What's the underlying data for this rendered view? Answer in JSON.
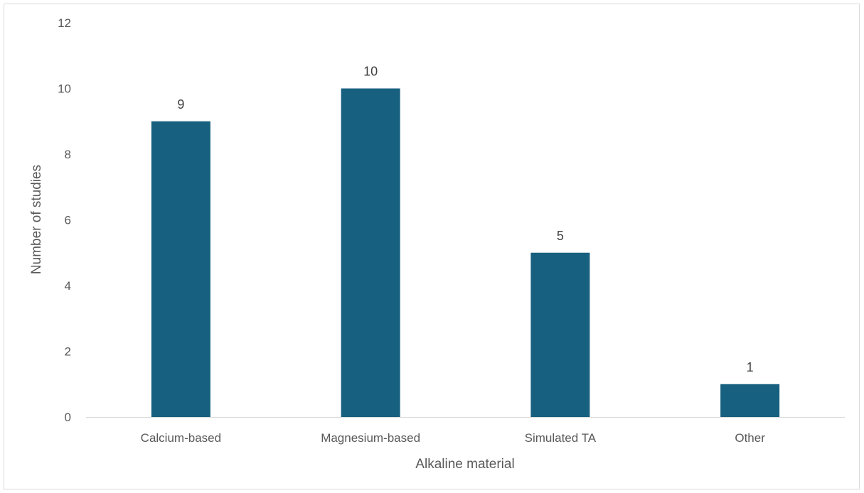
{
  "chart_data": {
    "type": "bar",
    "title": "",
    "categories": [
      "Calcium-based",
      "Magnesium-based",
      "Simulated TA",
      "Other"
    ],
    "values": [
      9,
      10,
      5,
      1
    ],
    "data_labels": [
      "9",
      "10",
      "5",
      "1"
    ],
    "xlabel": "Alkaline material",
    "ylabel": "Number of studies",
    "ylim": [
      0,
      12
    ],
    "yticks": [
      "0",
      "2",
      "4",
      "6",
      "8",
      "10",
      "12"
    ],
    "grid": false,
    "legend": "none",
    "bar_color": "#17607f",
    "axis_color": "#d9d9d9"
  }
}
